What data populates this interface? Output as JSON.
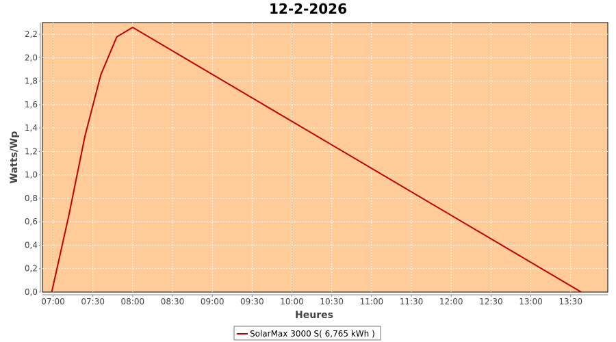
{
  "chart_data": {
    "type": "line",
    "title": "12-2-2026",
    "xlabel": "Heures",
    "ylabel": "Watts/Wp",
    "x_ticks": [
      "07:00",
      "07:30",
      "08:00",
      "08:30",
      "09:00",
      "09:30",
      "10:00",
      "10:30",
      "11:00",
      "11:30",
      "12:00",
      "12:30",
      "13:00",
      "13:30"
    ],
    "y_ticks": [
      "0,0",
      "0,2",
      "0,4",
      "0,6",
      "0,8",
      "1,0",
      "1,2",
      "1,4",
      "1,6",
      "1,8",
      "2,0",
      "2,2"
    ],
    "ylim": [
      0,
      2.3
    ],
    "xlim": [
      "06:52",
      "13:58"
    ],
    "grid": true,
    "legend_position": "bottom",
    "colors": {
      "plot_background": "#FFCC99",
      "series": "#C00000",
      "grid": "#FFFFFF"
    },
    "series": [
      {
        "name": "SolarMax 3000 S( 6,765 kWh )",
        "x": [
          "06:59",
          "07:12",
          "07:24",
          "07:36",
          "07:48",
          "08:00",
          "13:38"
        ],
        "y": [
          0,
          0.66,
          1.33,
          1.855,
          2.178,
          2.259,
          0
        ]
      }
    ]
  }
}
